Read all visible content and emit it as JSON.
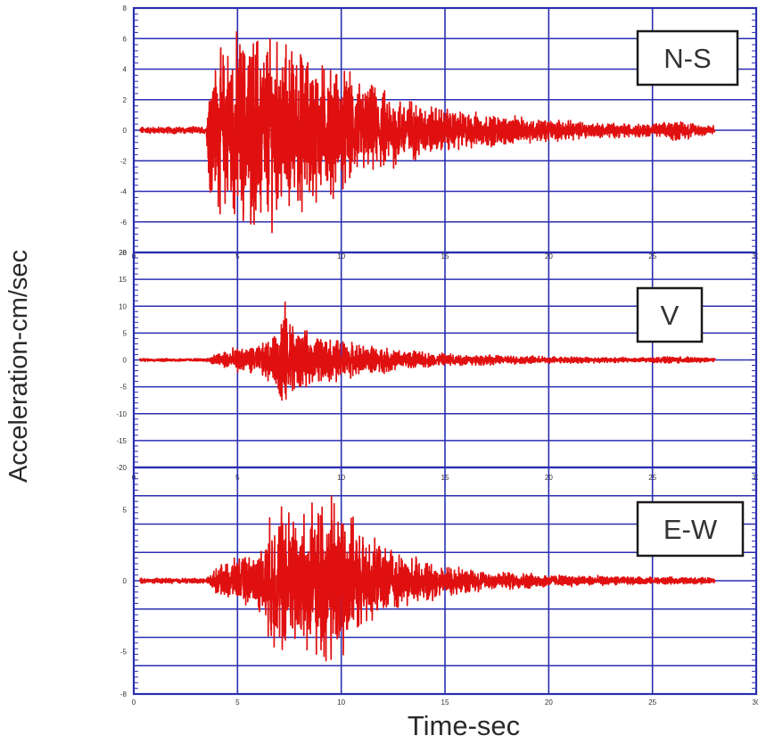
{
  "chart_data": {
    "type": "line",
    "xlabel": "Time-sec",
    "ylabel": "Acceleration-cm/sec",
    "grid": true,
    "line_color": "#e01010",
    "grid_color": "#2a2fb0",
    "x_ticks": [
      "0",
      "5",
      "10",
      "15",
      "20",
      "25",
      "30"
    ],
    "xlim": [
      0,
      30
    ],
    "panels": [
      {
        "label": "N-S",
        "ylim": [
          -8,
          8
        ],
        "y_ticks": [
          "8",
          "6",
          "4",
          "2",
          "0",
          "-2",
          "-4",
          "-6",
          "-8"
        ],
        "envelope": {
          "t": [
            0.0,
            3.5,
            3.6,
            4.0,
            4.5,
            5.0,
            5.5,
            6.0,
            7.0,
            8.0,
            9.0,
            10.0,
            11.0,
            12.0,
            13.0,
            14.0,
            15.0,
            17.0,
            19.0,
            22.0,
            24.0,
            25.5,
            26.0,
            28.0
          ],
          "amp": [
            0.25,
            0.25,
            4.0,
            5.5,
            6.5,
            7.2,
            6.8,
            7.5,
            6.5,
            6.0,
            5.0,
            4.5,
            3.6,
            3.0,
            2.5,
            2.0,
            1.6,
            1.2,
            0.9,
            0.6,
            0.5,
            0.5,
            0.8,
            0.35
          ]
        }
      },
      {
        "label": "V",
        "ylim": [
          -20,
          20
        ],
        "y_ticks": [
          "20",
          "15",
          "10",
          "5",
          "0",
          "-5",
          "-10",
          "-15",
          "-20"
        ],
        "envelope": {
          "t": [
            0.0,
            3.5,
            4.0,
            5.0,
            6.0,
            6.8,
            7.2,
            7.6,
            8.0,
            9.0,
            10.0,
            11.0,
            12.0,
            14.0,
            16.0,
            18.0,
            20.0,
            22.0,
            25.0,
            26.0,
            28.0
          ],
          "amp": [
            0.3,
            0.3,
            1.5,
            2.5,
            3.0,
            5.0,
            13.0,
            9.0,
            6.0,
            5.0,
            4.2,
            3.2,
            2.6,
            1.6,
            1.2,
            0.9,
            0.7,
            0.6,
            0.5,
            0.7,
            0.4
          ]
        }
      },
      {
        "label": "E-W",
        "ylim": [
          -8,
          8
        ],
        "y_ticks": [
          "5",
          "0",
          "-5",
          "-8"
        ],
        "envelope": {
          "t": [
            0.0,
            3.5,
            4.0,
            5.0,
            6.0,
            6.5,
            7.0,
            8.0,
            9.0,
            9.5,
            10.0,
            11.0,
            12.0,
            13.0,
            14.0,
            15.0,
            17.0,
            20.0,
            24.0,
            28.0
          ],
          "amp": [
            0.2,
            0.2,
            1.0,
            1.8,
            2.2,
            4.5,
            6.5,
            5.5,
            6.0,
            7.0,
            6.0,
            3.5,
            2.8,
            2.0,
            1.6,
            1.2,
            0.8,
            0.5,
            0.3,
            0.25
          ]
        }
      }
    ]
  }
}
